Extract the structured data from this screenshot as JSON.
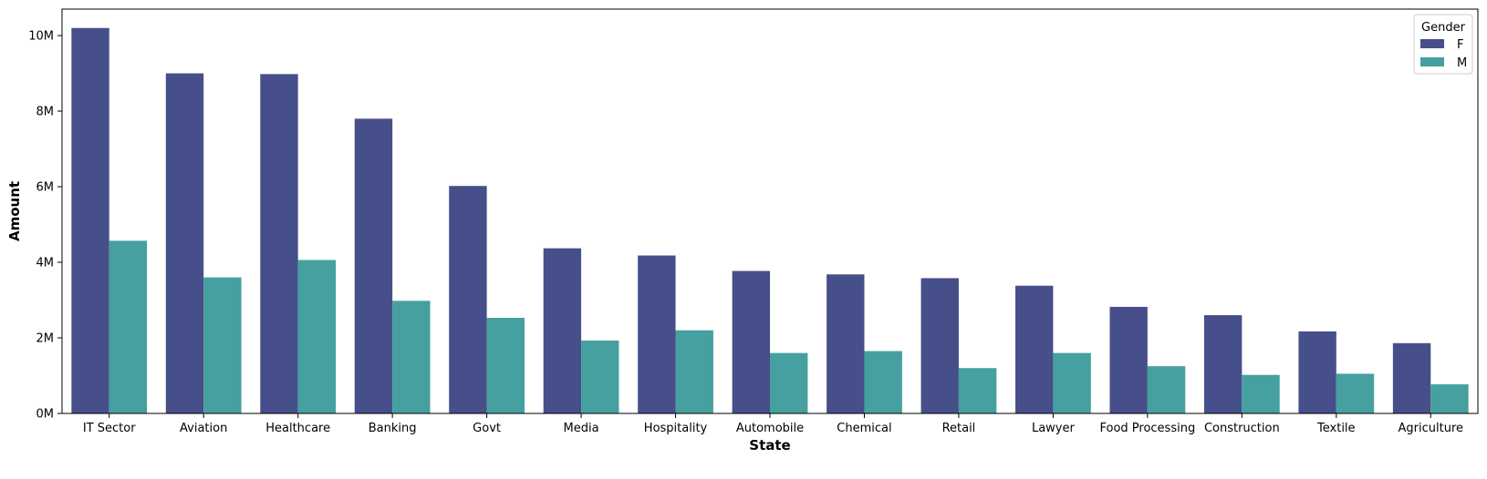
{
  "chart_data": {
    "type": "bar",
    "title": "",
    "xlabel": "State",
    "ylabel": "Amount",
    "categories": [
      "IT Sector",
      "Aviation",
      "Healthcare",
      "Banking",
      "Govt",
      "Media",
      "Hospitality",
      "Automobile",
      "Chemical",
      "Retail",
      "Lawyer",
      "Food Processing",
      "Construction",
      "Textile",
      "Agriculture"
    ],
    "series": [
      {
        "name": "F",
        "color": "#474f8a",
        "values": [
          10.2,
          9.0,
          8.98,
          7.8,
          6.02,
          4.37,
          4.18,
          3.77,
          3.68,
          3.58,
          3.38,
          2.82,
          2.6,
          2.17,
          1.86
        ]
      },
      {
        "name": "M",
        "color": "#45a09f",
        "values": [
          4.57,
          3.6,
          4.06,
          2.98,
          2.53,
          1.93,
          2.2,
          1.6,
          1.65,
          1.2,
          1.6,
          1.25,
          1.02,
          1.05,
          0.77
        ]
      }
    ],
    "ylim": [
      0,
      10.7
    ],
    "yticks": [
      0,
      2,
      4,
      6,
      8,
      10
    ],
    "ytick_labels": [
      "0M",
      "2M",
      "4M",
      "6M",
      "8M",
      "10M"
    ],
    "legend": {
      "title": "Gender",
      "entries": [
        "F",
        "M"
      ],
      "placement": "top-right"
    },
    "grid": false
  }
}
